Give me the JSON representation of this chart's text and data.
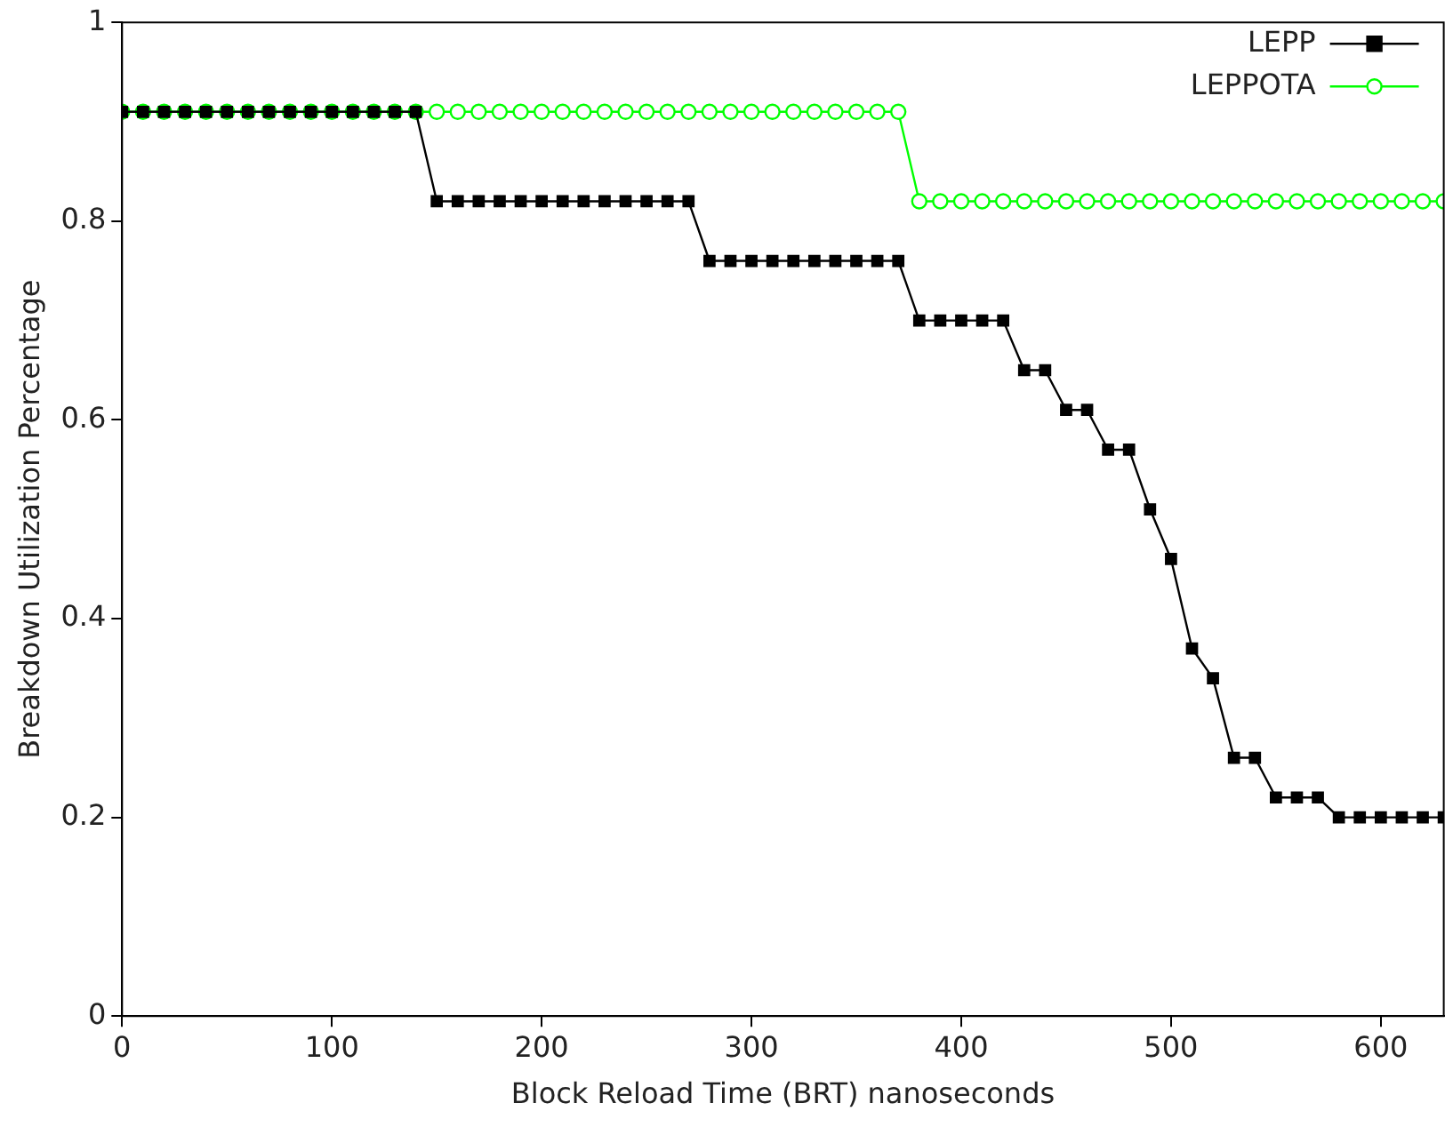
{
  "chart_data": {
    "type": "line",
    "xlabel": "Block Reload Time (BRT) nanoseconds",
    "ylabel": "Breakdown Utilization Percentage",
    "x": [
      0,
      10,
      20,
      30,
      40,
      50,
      60,
      70,
      80,
      90,
      100,
      110,
      120,
      130,
      140,
      150,
      160,
      170,
      180,
      190,
      200,
      210,
      220,
      230,
      240,
      250,
      260,
      270,
      280,
      290,
      300,
      310,
      320,
      330,
      340,
      350,
      360,
      370,
      380,
      390,
      400,
      410,
      420,
      430,
      440,
      450,
      460,
      470,
      480,
      490,
      500,
      510,
      520,
      530,
      540,
      550,
      560,
      570,
      580,
      590,
      600,
      610,
      620,
      630
    ],
    "series": [
      {
        "name": "LEPP",
        "color": "#000000",
        "marker": "square",
        "values": [
          0.91,
          0.91,
          0.91,
          0.91,
          0.91,
          0.91,
          0.91,
          0.91,
          0.91,
          0.91,
          0.91,
          0.91,
          0.91,
          0.91,
          0.91,
          0.82,
          0.82,
          0.82,
          0.82,
          0.82,
          0.82,
          0.82,
          0.82,
          0.82,
          0.82,
          0.82,
          0.82,
          0.82,
          0.76,
          0.76,
          0.76,
          0.76,
          0.76,
          0.76,
          0.76,
          0.76,
          0.76,
          0.76,
          0.7,
          0.7,
          0.7,
          0.7,
          0.7,
          0.65,
          0.65,
          0.61,
          0.61,
          0.57,
          0.57,
          0.51,
          0.46,
          0.37,
          0.34,
          0.26,
          0.26,
          0.22,
          0.22,
          0.22,
          0.2,
          0.2,
          0.2,
          0.2,
          0.2,
          0.2
        ]
      },
      {
        "name": "LEPPOTA",
        "color": "#00ff00",
        "marker": "circle",
        "values": [
          0.91,
          0.91,
          0.91,
          0.91,
          0.91,
          0.91,
          0.91,
          0.91,
          0.91,
          0.91,
          0.91,
          0.91,
          0.91,
          0.91,
          0.91,
          0.91,
          0.91,
          0.91,
          0.91,
          0.91,
          0.91,
          0.91,
          0.91,
          0.91,
          0.91,
          0.91,
          0.91,
          0.91,
          0.91,
          0.91,
          0.91,
          0.91,
          0.91,
          0.91,
          0.91,
          0.91,
          0.91,
          0.91,
          0.82,
          0.82,
          0.82,
          0.82,
          0.82,
          0.82,
          0.82,
          0.82,
          0.82,
          0.82,
          0.82,
          0.82,
          0.82,
          0.82,
          0.82,
          0.82,
          0.82,
          0.82,
          0.82,
          0.82,
          0.82,
          0.82,
          0.82,
          0.82,
          0.82,
          0.82
        ]
      }
    ],
    "xlim": [
      0,
      630
    ],
    "xticks": [
      0,
      100,
      200,
      300,
      400,
      500,
      600
    ],
    "ylim": [
      0,
      1
    ],
    "yticks": [
      0,
      0.2,
      0.4,
      0.6,
      0.8,
      1
    ],
    "grid": false,
    "legend": "top right"
  }
}
